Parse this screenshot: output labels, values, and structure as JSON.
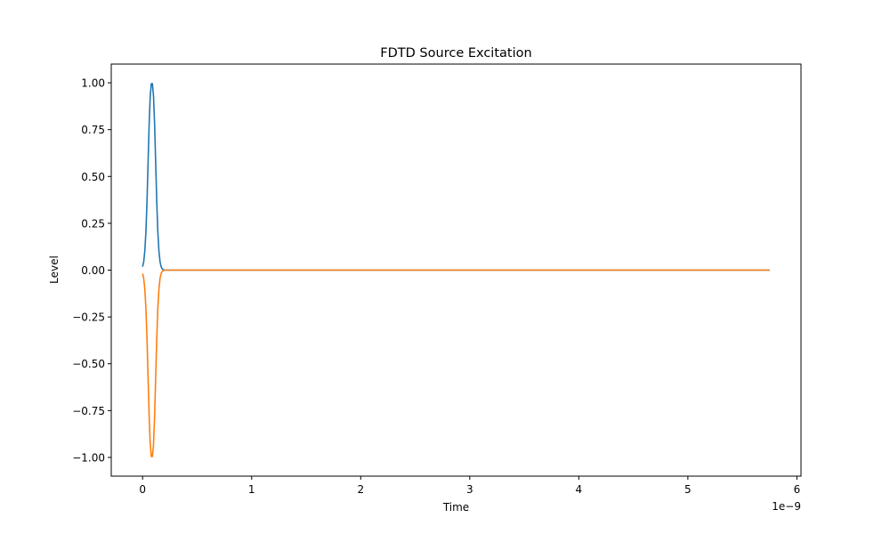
{
  "chart_data": {
    "type": "line",
    "title": "FDTD Source Excitation",
    "xlabel": "Time",
    "ylabel": "Level",
    "x_offset_label": "1e−9",
    "xlim": [
      -0.2875,
      6.0375
    ],
    "ylim": [
      -1.1,
      1.1
    ],
    "xticks": [
      0,
      1,
      2,
      3,
      4,
      5,
      6
    ],
    "xtick_labels": [
      "0",
      "1",
      "2",
      "3",
      "4",
      "5",
      "6"
    ],
    "yticks": [
      -1.0,
      -0.75,
      -0.5,
      -0.25,
      0.0,
      0.25,
      0.5,
      0.75,
      1.0
    ],
    "ytick_labels": [
      "−1.00",
      "−0.75",
      "−0.50",
      "−0.25",
      "0.00",
      "0.25",
      "0.50",
      "0.75",
      "1.00"
    ],
    "grid": false,
    "series": [
      {
        "color": "#1f77b4",
        "x": [
          0.0,
          0.01,
          0.02,
          0.03,
          0.04,
          0.05,
          0.06,
          0.07,
          0.08,
          0.09,
          0.1,
          0.11,
          0.12,
          0.13,
          0.14,
          0.15,
          0.16,
          0.17,
          0.18,
          0.19,
          0.2,
          0.22,
          0.25,
          0.3,
          1.0,
          2.0,
          3.0,
          4.0,
          5.0,
          5.75
        ],
        "y": [
          0.018,
          0.044,
          0.1,
          0.2,
          0.36,
          0.57,
          0.78,
          0.93,
          0.995,
          0.995,
          0.93,
          0.78,
          0.57,
          0.36,
          0.2,
          0.1,
          0.044,
          0.018,
          0.0065,
          0.002,
          0.0006,
          0.0,
          0.0,
          0.0,
          0.0,
          0.0,
          0.0,
          0.0,
          0.0,
          0.0
        ]
      },
      {
        "color": "#ff7f0e",
        "x": [
          0.0,
          0.01,
          0.02,
          0.03,
          0.04,
          0.05,
          0.06,
          0.07,
          0.08,
          0.09,
          0.1,
          0.11,
          0.12,
          0.13,
          0.14,
          0.15,
          0.16,
          0.17,
          0.18,
          0.19,
          0.2,
          0.22,
          0.25,
          0.3,
          1.0,
          2.0,
          3.0,
          4.0,
          5.0,
          5.75
        ],
        "y": [
          -0.018,
          -0.044,
          -0.1,
          -0.2,
          -0.36,
          -0.57,
          -0.78,
          -0.93,
          -0.995,
          -0.995,
          -0.93,
          -0.78,
          -0.57,
          -0.36,
          -0.2,
          -0.1,
          -0.044,
          -0.018,
          -0.0065,
          -0.002,
          -0.0006,
          0.0,
          0.0,
          0.0,
          0.0,
          0.0,
          0.0,
          0.0,
          0.0,
          0.0
        ]
      }
    ]
  }
}
